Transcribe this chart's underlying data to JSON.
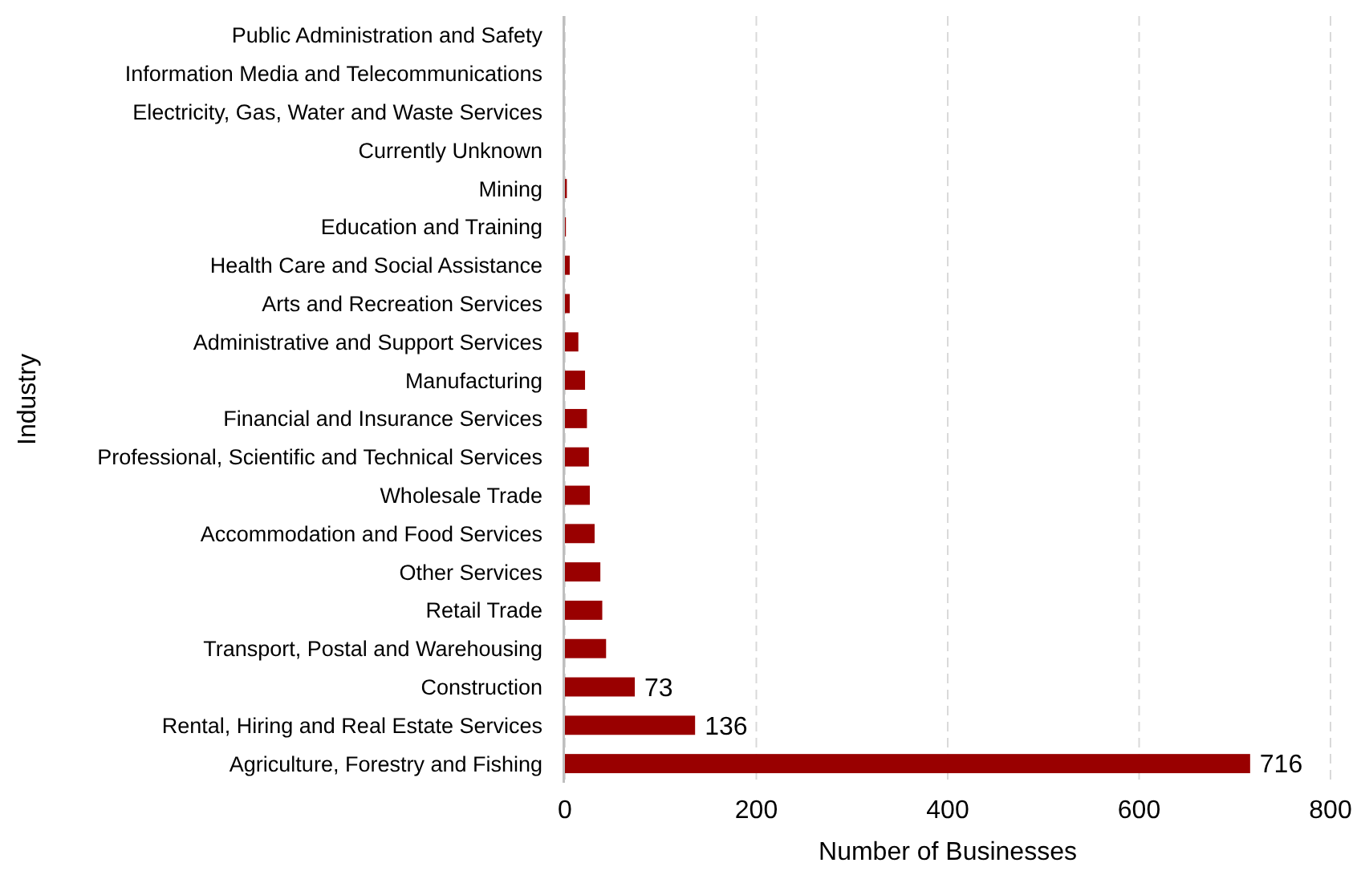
{
  "chart_data": {
    "type": "bar",
    "orientation": "horizontal",
    "xlabel": "Number of Businesses",
    "ylabel": "Industry",
    "categories": [
      "Public Administration and Safety",
      "Information Media and Telecommunications",
      "Electricity, Gas, Water and Waste Services",
      "Currently Unknown",
      "Mining",
      "Education and Training",
      "Health Care and Social Assistance",
      "Arts and Recreation Services",
      "Administrative and Support Services",
      "Manufacturing",
      "Financial and Insurance Services",
      "Professional, Scientific and Technical Services",
      "Wholesale Trade",
      "Accommodation and Food Services",
      "Other Services",
      "Retail Trade",
      "Transport, Postal and Warehousing",
      "Construction",
      "Rental, Hiring and Real Estate Services",
      "Agriculture, Forestry and Fishing"
    ],
    "values": [
      0,
      0,
      0,
      0,
      2,
      1,
      5,
      5,
      14,
      21,
      23,
      25,
      26,
      31,
      37,
      39,
      43,
      73,
      136,
      716
    ],
    "value_labels": [
      null,
      null,
      null,
      null,
      null,
      null,
      null,
      null,
      null,
      null,
      null,
      null,
      null,
      null,
      null,
      null,
      null,
      "73",
      "136",
      "716"
    ],
    "color": "#990000",
    "xlim": [
      0,
      800
    ],
    "xticks": [
      0,
      200,
      400,
      600,
      800
    ],
    "grid": "x"
  }
}
